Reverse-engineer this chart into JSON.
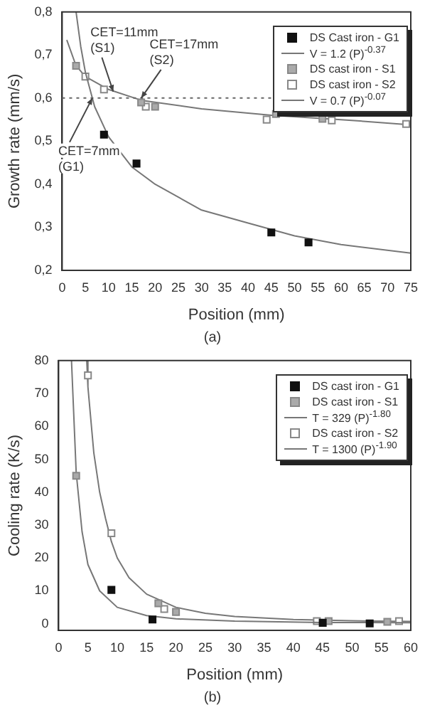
{
  "chart_data": [
    {
      "type": "scatter",
      "xlabel": "Position (mm)",
      "ylabel": "Growth rate (mm/s)",
      "xlim": [
        0,
        75
      ],
      "xticks": [
        0,
        5,
        10,
        15,
        20,
        25,
        30,
        35,
        40,
        45,
        50,
        55,
        60,
        65,
        70,
        75
      ],
      "ylim": [
        0.2,
        0.8
      ],
      "yticks": [
        {
          "value": 0.2,
          "label": "0,2"
        },
        {
          "value": 0.3,
          "label": "0,3"
        },
        {
          "value": 0.4,
          "label": "0,4"
        },
        {
          "value": 0.5,
          "label": "0,5"
        },
        {
          "value": 0.6,
          "label": "0,6"
        },
        {
          "value": 0.7,
          "label": "0,7"
        },
        {
          "value": 0.8,
          "label": "0,8"
        }
      ],
      "grid": false,
      "legend": "top right",
      "series": [
        {
          "name": "DS Cast iron - G1",
          "marker": "square",
          "color": "#111111",
          "x": [
            9,
            16,
            45,
            53
          ],
          "values": [
            0.515,
            0.448,
            0.288,
            0.265
          ]
        },
        {
          "name": "V = 1.2 (P)$^{-0.37}$",
          "type": "line",
          "marker": "none",
          "color": "#777777",
          "x": [
            3,
            4,
            5,
            7,
            10,
            15,
            20,
            30,
            40,
            50,
            60,
            75
          ],
          "values": [
            0.8,
            0.72,
            0.66,
            0.58,
            0.51,
            0.44,
            0.4,
            0.34,
            0.31,
            0.28,
            0.26,
            0.24
          ]
        },
        {
          "name": "DS cast iron - S1",
          "marker": "square",
          "color": "#aaaaaa",
          "x": [
            3,
            17,
            20,
            46,
            56
          ],
          "values": [
            0.675,
            0.59,
            0.58,
            0.563,
            0.552
          ]
        },
        {
          "name": "DS cast iron - S2",
          "marker": "square",
          "color": "#ffffff",
          "x": [
            5,
            9,
            18,
            44,
            58,
            74
          ],
          "values": [
            0.65,
            0.62,
            0.58,
            0.55,
            0.548,
            0.54
          ]
        },
        {
          "name": "V = 0.7 (P)$^{-0.07}$",
          "type": "line",
          "marker": "none",
          "color": "#777777",
          "x": [
            1,
            3,
            5,
            10,
            17,
            30,
            45,
            60,
            75
          ],
          "values": [
            0.735,
            0.675,
            0.65,
            0.62,
            0.595,
            0.575,
            0.56,
            0.55,
            0.538
          ]
        }
      ],
      "ref_lines": [
        {
          "axis": "y",
          "value": 0.6,
          "line_style": "dotted",
          "color": "#666666"
        }
      ],
      "annotations": [
        {
          "text": "CET=11mm (S1)",
          "x": 11,
          "y": 0.615
        },
        {
          "text": "CET=17mm (S2)",
          "x": 17,
          "y": 0.6
        },
        {
          "text": "CET=7mm (G1)",
          "x": 6.5,
          "y": 0.6
        },
        "(a)"
      ]
    },
    {
      "type": "scatter",
      "xlabel": "Position (mm)",
      "ylabel": "Cooling rate (K/s)",
      "xlim": [
        0,
        60
      ],
      "xticks": [
        0,
        5,
        10,
        15,
        20,
        25,
        30,
        35,
        40,
        45,
        50,
        55,
        60
      ],
      "ylim": [
        -2,
        80
      ],
      "yticks": [
        0,
        10,
        20,
        30,
        40,
        50,
        60,
        70,
        80
      ],
      "grid": false,
      "legend": "top right",
      "series": [
        {
          "name": "DS cast iron - G1",
          "marker": "square",
          "color": "#111111",
          "x": [
            9,
            16,
            45,
            53
          ],
          "values": [
            10.3,
            1.3,
            0.3,
            0.1
          ]
        },
        {
          "name": "DS cast iron - S1",
          "marker": "square",
          "color": "#aaaaaa",
          "x": [
            3,
            17,
            20,
            46,
            56
          ],
          "values": [
            45,
            6.2,
            3.6,
            0.8,
            0.6
          ]
        },
        {
          "name": "T = 329 (P)$^{-1.80}$",
          "type": "line",
          "marker": "none",
          "color": "#777777",
          "x": [
            2.2,
            3,
            4,
            5,
            7,
            10,
            15,
            20,
            30,
            45,
            60
          ],
          "values": [
            80,
            46,
            28,
            18,
            10,
            5,
            2.5,
            1.5,
            0.8,
            0.4,
            0.3
          ]
        },
        {
          "name": "DS cast iron - S2",
          "marker": "square",
          "color": "#ffffff",
          "x": [
            5,
            9,
            18,
            44,
            58
          ],
          "values": [
            75.5,
            27.5,
            4.5,
            0.8,
            0.8
          ]
        },
        {
          "name": "T = 1300 (P)$^{-1.90}$",
          "type": "line",
          "marker": "none",
          "color": "#777777",
          "x": [
            4.8,
            5,
            6,
            7,
            8,
            9,
            10,
            12,
            15,
            20,
            25,
            30,
            40,
            50,
            60
          ],
          "values": [
            80,
            72,
            52,
            40,
            32,
            25,
            20,
            14,
            9,
            5,
            3.2,
            2.2,
            1.3,
            0.9,
            0.7
          ]
        }
      ],
      "annotations": [
        "(b)"
      ]
    }
  ]
}
